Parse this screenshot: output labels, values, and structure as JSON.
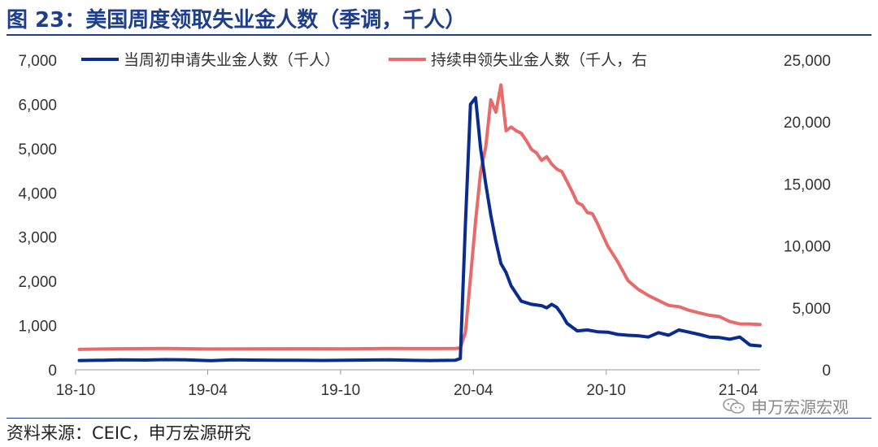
{
  "title": "图 23：美国周度领取失业金人数（季调，千人）",
  "source": "资料来源：CEIC，申万宏源研究",
  "watermark": "申万宏源宏观",
  "colors": {
    "title": "#1f3e8a",
    "initial": "#0b2c8f",
    "continuing": "#e86b6b"
  },
  "chart_data": {
    "type": "line",
    "x_tick_labels": [
      "18-10",
      "19-04",
      "19-10",
      "20-04",
      "20-10",
      "21-04"
    ],
    "x_range": [
      "2018-10",
      "2021-04"
    ],
    "y_left": {
      "ticks": [
        "0",
        "1,000",
        "2,000",
        "3,000",
        "4,000",
        "5,000",
        "6,000",
        "7,000"
      ],
      "range": [
        0,
        7000
      ]
    },
    "y_right": {
      "ticks": [
        "0",
        "5,000",
        "10,000",
        "15,000",
        "20,000",
        "25,000"
      ],
      "range": [
        0,
        25000
      ]
    },
    "grid": false,
    "legend_position": "top",
    "series": [
      {
        "name": "当周初申请失业金人数（千人）",
        "axis": "left",
        "color": "#0b2c8f",
        "points": [
          [
            "2018-10-06",
            210
          ],
          [
            "2018-11-03",
            215
          ],
          [
            "2018-12-01",
            225
          ],
          [
            "2019-01-05",
            220
          ],
          [
            "2019-02-02",
            230
          ],
          [
            "2019-03-02",
            225
          ],
          [
            "2019-04-06",
            205
          ],
          [
            "2019-05-04",
            225
          ],
          [
            "2019-06-01",
            220
          ],
          [
            "2019-07-06",
            215
          ],
          [
            "2019-08-03",
            215
          ],
          [
            "2019-09-07",
            212
          ],
          [
            "2019-10-05",
            215
          ],
          [
            "2019-11-02",
            220
          ],
          [
            "2019-12-07",
            225
          ],
          [
            "2020-01-04",
            215
          ],
          [
            "2020-02-01",
            210
          ],
          [
            "2020-03-07",
            215
          ],
          [
            "2020-03-14",
            256
          ],
          [
            "2020-03-21",
            3300
          ],
          [
            "2020-03-28",
            6000
          ],
          [
            "2020-04-04",
            6150
          ],
          [
            "2020-04-11",
            5000
          ],
          [
            "2020-04-18",
            4200
          ],
          [
            "2020-04-25",
            3500
          ],
          [
            "2020-05-02",
            2900
          ],
          [
            "2020-05-09",
            2400
          ],
          [
            "2020-05-16",
            2200
          ],
          [
            "2020-05-23",
            1900
          ],
          [
            "2020-06-06",
            1550
          ],
          [
            "2020-06-20",
            1480
          ],
          [
            "2020-07-04",
            1450
          ],
          [
            "2020-07-11",
            1400
          ],
          [
            "2020-07-18",
            1480
          ],
          [
            "2020-07-25",
            1410
          ],
          [
            "2020-08-01",
            1250
          ],
          [
            "2020-08-08",
            1050
          ],
          [
            "2020-08-22",
            880
          ],
          [
            "2020-09-05",
            900
          ],
          [
            "2020-09-19",
            860
          ],
          [
            "2020-10-03",
            850
          ],
          [
            "2020-10-17",
            800
          ],
          [
            "2020-10-31",
            780
          ],
          [
            "2020-11-14",
            770
          ],
          [
            "2020-11-28",
            740
          ],
          [
            "2020-12-12",
            840
          ],
          [
            "2020-12-26",
            780
          ],
          [
            "2021-01-09",
            900
          ],
          [
            "2021-01-23",
            850
          ],
          [
            "2021-02-06",
            800
          ],
          [
            "2021-02-20",
            740
          ],
          [
            "2021-03-06",
            730
          ],
          [
            "2021-03-20",
            690
          ],
          [
            "2021-04-03",
            740
          ],
          [
            "2021-04-17",
            560
          ],
          [
            "2021-05-01",
            540
          ]
        ]
      },
      {
        "name": "持续申领失业金人数（千人，右",
        "axis": "right",
        "color": "#e86b6b",
        "points": [
          [
            "2018-10-06",
            1650
          ],
          [
            "2018-12-01",
            1700
          ],
          [
            "2019-02-02",
            1720
          ],
          [
            "2019-04-06",
            1680
          ],
          [
            "2019-06-01",
            1690
          ],
          [
            "2019-08-03",
            1700
          ],
          [
            "2019-10-05",
            1690
          ],
          [
            "2019-12-07",
            1720
          ],
          [
            "2020-02-01",
            1710
          ],
          [
            "2020-03-07",
            1720
          ],
          [
            "2020-03-14",
            1750
          ],
          [
            "2020-03-21",
            3000
          ],
          [
            "2020-03-28",
            7400
          ],
          [
            "2020-04-04",
            12000
          ],
          [
            "2020-04-11",
            16000
          ],
          [
            "2020-04-18",
            18000
          ],
          [
            "2020-04-25",
            21800
          ],
          [
            "2020-05-02",
            20800
          ],
          [
            "2020-05-09",
            23000
          ],
          [
            "2020-05-16",
            19300
          ],
          [
            "2020-05-23",
            19600
          ],
          [
            "2020-05-30",
            19300
          ],
          [
            "2020-06-06",
            19100
          ],
          [
            "2020-06-13",
            18500
          ],
          [
            "2020-06-20",
            17800
          ],
          [
            "2020-06-27",
            17500
          ],
          [
            "2020-07-04",
            16900
          ],
          [
            "2020-07-11",
            17200
          ],
          [
            "2020-07-18",
            16600
          ],
          [
            "2020-07-25",
            16200
          ],
          [
            "2020-08-01",
            16000
          ],
          [
            "2020-08-08",
            15200
          ],
          [
            "2020-08-15",
            14400
          ],
          [
            "2020-08-22",
            13500
          ],
          [
            "2020-08-29",
            13300
          ],
          [
            "2020-09-05",
            12700
          ],
          [
            "2020-09-12",
            12600
          ],
          [
            "2020-09-19",
            11800
          ],
          [
            "2020-09-26",
            10900
          ],
          [
            "2020-10-03",
            10000
          ],
          [
            "2020-10-17",
            8700
          ],
          [
            "2020-10-31",
            7200
          ],
          [
            "2020-11-14",
            6500
          ],
          [
            "2020-11-28",
            6000
          ],
          [
            "2020-12-12",
            5600
          ],
          [
            "2020-12-26",
            5200
          ],
          [
            "2021-01-09",
            5100
          ],
          [
            "2021-01-23",
            4800
          ],
          [
            "2021-02-06",
            4600
          ],
          [
            "2021-02-20",
            4400
          ],
          [
            "2021-03-06",
            4300
          ],
          [
            "2021-03-20",
            3900
          ],
          [
            "2021-04-03",
            3700
          ],
          [
            "2021-04-17",
            3700
          ],
          [
            "2021-05-01",
            3650
          ]
        ]
      }
    ]
  }
}
